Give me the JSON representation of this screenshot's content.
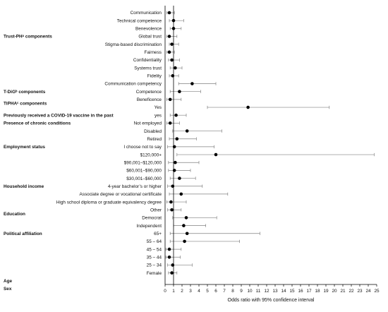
{
  "chart_data": {
    "type": "forest",
    "xlabel": "Odds ratio with 95% confidence interval",
    "xlim": [
      0,
      25
    ],
    "xticks": [
      0,
      1,
      2,
      3,
      4,
      5,
      6,
      7,
      8,
      9,
      10,
      11,
      12,
      13,
      14,
      15,
      16,
      17,
      18,
      19,
      20,
      21,
      22,
      23,
      24,
      25
    ],
    "reference_line": 1,
    "groups": [
      {
        "label": "Trust-PHᵃ components",
        "row_index": 3
      },
      {
        "label": "T-DiGᵇ components",
        "row_index": 10
      },
      {
        "label": "TiPHAᶜ components",
        "row_index": 11.5
      },
      {
        "label": "Previously received a COVID-19 vaccine in the past",
        "row_index": 13
      },
      {
        "label": "Presence of chronic conditions",
        "row_index": 14
      },
      {
        "label": "Employment status",
        "row_index": 17
      },
      {
        "label": "Household income",
        "row_index": 22
      },
      {
        "label": "Education",
        "row_index": 25.5
      },
      {
        "label": "Political affiliation",
        "row_index": 28
      },
      {
        "label": "Age",
        "row_index": 34
      },
      {
        "label": "Sex",
        "row_index": 35
      }
    ],
    "rows": [
      {
        "label": "Communication",
        "or": 0.5,
        "lo": 0.2,
        "hi": 1.1
      },
      {
        "label": "Technical competence",
        "or": 1.0,
        "lo": 0.5,
        "hi": 2.2
      },
      {
        "label": "Benevolence",
        "or": 1.0,
        "lo": 0.6,
        "hi": 1.9
      },
      {
        "label": "Global trust",
        "or": 0.5,
        "lo": 0.2,
        "hi": 1.4
      },
      {
        "label": "Stigma-based discrimination",
        "or": 0.8,
        "lo": 0.5,
        "hi": 1.6
      },
      {
        "label": "Fairness",
        "or": 0.5,
        "lo": 0.2,
        "hi": 1.1
      },
      {
        "label": "Confidentiality",
        "or": 0.8,
        "lo": 0.4,
        "hi": 1.7
      },
      {
        "label": "Systems trust",
        "or": 1.2,
        "lo": 0.6,
        "hi": 2.0
      },
      {
        "label": "Fidelity",
        "or": 0.9,
        "lo": 0.5,
        "hi": 1.6
      },
      {
        "label": "Communication competency",
        "or": 3.2,
        "lo": 1.6,
        "hi": 6.0
      },
      {
        "label": "Competence",
        "or": 1.7,
        "lo": 0.6,
        "hi": 4.2
      },
      {
        "label": "Beneficence",
        "or": 0.6,
        "lo": 0.2,
        "hi": 1.9
      },
      {
        "label": "Yes",
        "or": 9.8,
        "lo": 5.0,
        "hi": 19.4
      },
      {
        "label": "yes",
        "or": 1.3,
        "lo": 0.6,
        "hi": 2.5
      },
      {
        "label": "Not employed",
        "or": 0.6,
        "lo": 0.2,
        "hi": 1.7
      },
      {
        "label": "Disabled",
        "or": 2.6,
        "lo": 0.9,
        "hi": 6.7
      },
      {
        "label": "Retired",
        "or": 1.4,
        "lo": 0.5,
        "hi": 3.7
      },
      {
        "label": "I choose not to say",
        "or": 1.1,
        "lo": 0.3,
        "hi": 5.8
      },
      {
        "label": "$120,000+",
        "or": 6.0,
        "lo": 1.4,
        "hi": 24.7
      },
      {
        "label": "$90,001–$120,000",
        "or": 1.2,
        "lo": 0.4,
        "hi": 4.0
      },
      {
        "label": "$60,001–$90,000",
        "or": 1.1,
        "lo": 0.4,
        "hi": 3.0
      },
      {
        "label": "$30,001–$60,000",
        "or": 1.7,
        "lo": 0.6,
        "hi": 3.6
      },
      {
        "label": "4-year bachelor’s or higher",
        "or": 0.9,
        "lo": 0.3,
        "hi": 4.4
      },
      {
        "label": "Associate degree or vocational certificate",
        "or": 1.9,
        "lo": 0.5,
        "hi": 7.4
      },
      {
        "label": "High school diploma or graduate equivalency degree",
        "or": 0.7,
        "lo": 0.2,
        "hi": 2.5
      },
      {
        "label": "Other",
        "or": 0.8,
        "lo": 0.3,
        "hi": 1.9
      },
      {
        "label": "Democrat",
        "or": 2.5,
        "lo": 0.9,
        "hi": 6.1
      },
      {
        "label": "Independent",
        "or": 2.2,
        "lo": 1.0,
        "hi": 4.8
      },
      {
        "label": "65+",
        "or": 2.6,
        "lo": 0.6,
        "hi": 11.2
      },
      {
        "label": "55 – 64",
        "or": 2.3,
        "lo": 0.6,
        "hi": 8.8
      },
      {
        "label": "45 – 54",
        "or": 0.5,
        "lo": 0.1,
        "hi": 1.9
      },
      {
        "label": "35 – 44",
        "or": 0.5,
        "lo": 0.1,
        "hi": 1.8
      },
      {
        "label": "25 – 34",
        "or": 0.9,
        "lo": 0.3,
        "hi": 3.2
      },
      {
        "label": "Female",
        "or": 0.8,
        "lo": 0.4,
        "hi": 1.4
      }
    ],
    "marker_color": "#000000",
    "line_color": "#808080"
  }
}
